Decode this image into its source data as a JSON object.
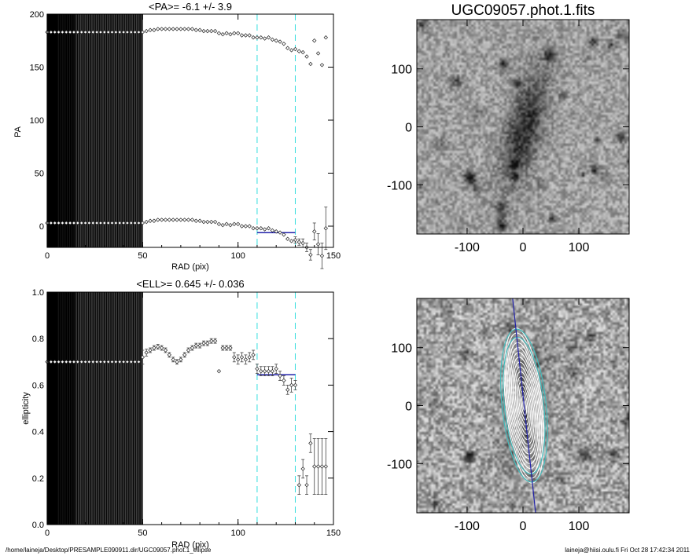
{
  "page": {
    "footer_left": "/home/laineja/Desktop/PRESAMPLE090911.dir/UGC09057.phot.1_ellipse",
    "footer_right": "laineja@hiisi.oulu.fi  Fri Oct 28 17:42:34 2011"
  },
  "colors": {
    "fit_line": "#2222aa",
    "cyan_dash": "#33dddd",
    "ellipse_ring": "#44bbbb"
  },
  "chart_data": [
    {
      "id": "pa",
      "type": "scatter",
      "title": "<PA>=  -6.1 +/-   3.9",
      "xlabel": "RAD (pix)",
      "ylabel": "PA",
      "xlim": [
        0,
        150
      ],
      "ylim": [
        -20,
        200
      ],
      "xticks": [
        0,
        50,
        100,
        150
      ],
      "yticks": [
        0,
        50,
        100,
        150,
        200
      ],
      "vlines": [
        110,
        130
      ],
      "fit": {
        "x": [
          110,
          130
        ],
        "y": -6.1
      },
      "series": [
        {
          "x": [
            0,
            2,
            4,
            6,
            8,
            10,
            12,
            14,
            16,
            18,
            20,
            22,
            24,
            26,
            28,
            30,
            32,
            34,
            36,
            38,
            40,
            42,
            44,
            46,
            48,
            50,
            52,
            54,
            56,
            58,
            60,
            62,
            64,
            66,
            68,
            70,
            72,
            74,
            76,
            78,
            80,
            82,
            84,
            86,
            88,
            90,
            92,
            94,
            96,
            98,
            100,
            102,
            104,
            106,
            108,
            110,
            112,
            114,
            116,
            118,
            120,
            122,
            124,
            126,
            128,
            130,
            132,
            134,
            136,
            138,
            140,
            142,
            144,
            146
          ],
          "y": [
            183,
            183,
            183,
            183,
            183,
            183,
            183,
            183,
            183,
            183,
            183,
            183,
            183,
            183,
            183,
            183,
            183,
            183,
            183,
            183,
            183,
            183,
            183,
            183,
            183,
            183,
            184,
            185,
            185,
            186,
            186,
            186,
            186,
            186,
            186,
            186,
            186,
            186,
            186,
            185,
            185,
            184,
            184,
            184,
            184,
            182,
            181,
            182,
            181,
            182,
            182,
            180,
            180,
            180,
            178,
            178,
            178,
            177,
            178,
            176,
            175,
            174,
            172,
            168,
            166,
            167,
            165,
            164,
            160,
            153,
            175,
            163,
            152,
            178
          ]
        },
        {
          "x": [
            0,
            2,
            4,
            6,
            8,
            10,
            12,
            14,
            16,
            18,
            20,
            22,
            24,
            26,
            28,
            30,
            32,
            34,
            36,
            38,
            40,
            42,
            44,
            46,
            48,
            50,
            52,
            54,
            56,
            58,
            60,
            62,
            64,
            66,
            68,
            70,
            72,
            74,
            76,
            78,
            80,
            82,
            84,
            86,
            88,
            90,
            92,
            94,
            96,
            98,
            100,
            102,
            104,
            106,
            108,
            110,
            112,
            114,
            116,
            118,
            120,
            122,
            124,
            126,
            128,
            130,
            132,
            134,
            136,
            138,
            140,
            142,
            144,
            146
          ],
          "y": [
            3,
            3,
            3,
            3,
            3,
            3,
            3,
            3,
            3,
            3,
            3,
            3,
            3,
            3,
            3,
            3,
            3,
            3,
            3,
            3,
            3,
            3,
            3,
            3,
            3,
            3,
            4,
            5,
            5,
            6,
            6,
            6,
            6,
            6,
            6,
            6,
            6,
            6,
            6,
            5,
            5,
            4,
            4,
            4,
            4,
            2,
            1,
            2,
            1,
            2,
            2,
            0,
            0,
            0,
            -2,
            -2,
            -2,
            -3,
            -2,
            -4,
            -5,
            -6,
            -8,
            -12,
            -14,
            -13,
            -15,
            -16,
            -20,
            -27,
            -5,
            -17,
            -28,
            -2
          ],
          "err": [
            0,
            0,
            0,
            0,
            0,
            0,
            0,
            0,
            0,
            0,
            0,
            0,
            0,
            0,
            0,
            0,
            0,
            0,
            0,
            0,
            0,
            0,
            0,
            0,
            0,
            0,
            0,
            0,
            0,
            0,
            0,
            0,
            0,
            0,
            0,
            0,
            0,
            0,
            0,
            0,
            0,
            0,
            0,
            0,
            0,
            0,
            0,
            0,
            0,
            0,
            0,
            0,
            0,
            0,
            0,
            0,
            0,
            0,
            0,
            0,
            0,
            0,
            0,
            0,
            0,
            3,
            3,
            4,
            4,
            5,
            8,
            10,
            12,
            20
          ]
        }
      ]
    },
    {
      "id": "ell",
      "type": "scatter",
      "title": "<ELL>= 0.645 +/-  0.036",
      "xlabel": "RAD (pix)",
      "ylabel": "ellipticity",
      "xlim": [
        0,
        150
      ],
      "ylim": [
        0.0,
        1.0
      ],
      "xticks": [
        0,
        50,
        100,
        150
      ],
      "yticks": [
        "0.0",
        "0.2",
        "0.4",
        "0.6",
        "0.8",
        "1.0"
      ],
      "vlines": [
        110,
        130
      ],
      "fit": {
        "x": [
          110,
          130
        ],
        "y": 0.645
      },
      "series": [
        {
          "x": [
            0,
            2,
            4,
            6,
            8,
            10,
            12,
            14,
            16,
            18,
            20,
            22,
            24,
            26,
            28,
            30,
            32,
            34,
            36,
            38,
            40,
            42,
            44,
            46,
            48,
            50,
            52,
            54,
            56,
            58,
            60,
            62,
            64,
            66,
            68,
            70,
            72,
            74,
            76,
            78,
            80,
            82,
            84,
            86,
            88,
            90,
            92,
            94,
            96,
            98,
            100,
            102,
            104,
            106,
            108,
            110,
            112,
            114,
            116,
            118,
            120,
            122,
            124,
            126,
            128,
            130,
            132,
            134,
            136,
            138,
            140,
            142,
            144,
            146
          ],
          "y": [
            0.7,
            0.7,
            0.7,
            0.7,
            0.7,
            0.7,
            0.7,
            0.7,
            0.7,
            0.7,
            0.7,
            0.7,
            0.7,
            0.7,
            0.7,
            0.7,
            0.7,
            0.7,
            0.7,
            0.7,
            0.7,
            0.7,
            0.7,
            0.7,
            0.7,
            0.72,
            0.74,
            0.75,
            0.76,
            0.765,
            0.76,
            0.75,
            0.73,
            0.71,
            0.7,
            0.71,
            0.73,
            0.75,
            0.76,
            0.77,
            0.77,
            0.78,
            0.78,
            0.79,
            0.79,
            0.66,
            0.76,
            0.76,
            0.76,
            0.72,
            0.71,
            0.72,
            0.71,
            0.72,
            0.73,
            0.67,
            0.66,
            0.66,
            0.66,
            0.66,
            0.67,
            0.64,
            0.62,
            0.58,
            0.6,
            0.6,
            0.17,
            0.24,
            0.17,
            0.35,
            0.25,
            0.25,
            0.25,
            0.25
          ],
          "err": [
            0,
            0,
            0,
            0,
            0,
            0,
            0,
            0,
            0,
            0,
            0,
            0,
            0,
            0,
            0,
            0,
            0,
            0,
            0,
            0,
            0,
            0,
            0,
            0,
            0,
            0.03,
            0.015,
            0.01,
            0.01,
            0.01,
            0.01,
            0.01,
            0.01,
            0.01,
            0.01,
            0.01,
            0.01,
            0.01,
            0.01,
            0.01,
            0.01,
            0.01,
            0.01,
            0.01,
            0.01,
            0,
            0.01,
            0.01,
            0.01,
            0.02,
            0.02,
            0.02,
            0.02,
            0.02,
            0.02,
            0.02,
            0.02,
            0.02,
            0.02,
            0.02,
            0.02,
            0.02,
            0.02,
            0.02,
            0.03,
            0.02,
            0.04,
            0.04,
            0.04,
            0.04,
            0.12,
            0.12,
            0.12,
            0.12
          ]
        }
      ]
    },
    {
      "id": "img1",
      "type": "heatmap",
      "title": "UGC09057.phot.1.fits",
      "xlim": [
        -190,
        190
      ],
      "ylim": [
        -185,
        185
      ],
      "xticks": [
        -100,
        0,
        100
      ],
      "yticks": [
        -100,
        0,
        100
      ]
    },
    {
      "id": "img2",
      "type": "heatmap",
      "title": "",
      "xlim": [
        -190,
        190
      ],
      "ylim": [
        -185,
        185
      ],
      "xticks": [
        -100,
        0,
        100
      ],
      "yticks": [
        -100,
        0,
        100
      ],
      "pa_line_deg": -6.1
    }
  ]
}
